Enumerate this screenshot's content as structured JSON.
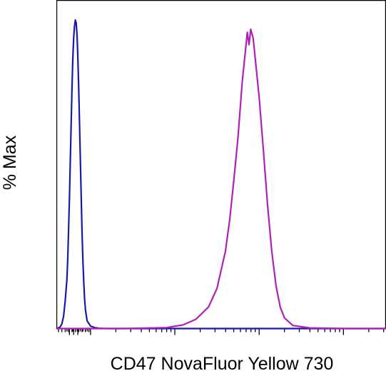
{
  "chart_data": {
    "type": "line",
    "title": "",
    "xlabel": "CD47 NovaFluor Yellow 730",
    "ylabel": "% Max",
    "x_scale": "logicle",
    "x_tick_labels_shown": false,
    "y_tick_labels_shown": false,
    "ylim": [
      0,
      100
    ],
    "grid": false,
    "legend": "none",
    "series": [
      {
        "color": "#1a1aa6",
        "x": [
          0.6,
          0.64,
          0.66,
          0.68,
          0.7,
          0.72,
          0.73,
          0.74,
          0.75,
          0.76,
          0.77,
          0.78,
          0.79,
          0.8,
          0.81,
          0.82,
          0.83,
          0.84,
          0.85,
          0.86,
          0.87,
          0.88,
          0.89,
          0.9,
          0.91,
          0.92,
          0.93,
          0.94,
          0.96,
          1.0,
          1.05,
          1.1,
          1.15,
          1.2,
          1.25,
          1.3,
          1.4,
          1.7,
          2.0,
          2.5,
          3.0,
          3.5,
          4.0,
          4.5
        ],
        "values": [
          0.0,
          0.5,
          1.5,
          4.0,
          9.0,
          16.0,
          23.0,
          32.0,
          42.0,
          54.0,
          66.0,
          78.0,
          87.0,
          94.0,
          98.0,
          100.0,
          99.0,
          95.0,
          88.0,
          78.0,
          66.0,
          54.0,
          42.0,
          31.0,
          22.0,
          15.0,
          9.5,
          6.0,
          2.5,
          0.8,
          0.3,
          0.1,
          0.05,
          0.0,
          0.0,
          0.0,
          0.0,
          0.0,
          0.0,
          0.0,
          0.0,
          0.0,
          0.0,
          0.0
        ]
      },
      {
        "color": "#b01fb8",
        "x": [
          0.6,
          1.0,
          1.4,
          1.9,
          2.1,
          2.25,
          2.4,
          2.5,
          2.6,
          2.65,
          2.7,
          2.75,
          2.8,
          2.83,
          2.86,
          2.88,
          2.9,
          2.93,
          2.96,
          3.0,
          3.05,
          3.1,
          3.15,
          3.2,
          3.25,
          3.3,
          3.4,
          3.6,
          4.0,
          4.5
        ],
        "values": [
          0.0,
          0.0,
          0.0,
          0.3,
          1.2,
          3.0,
          7.0,
          13.0,
          25.0,
          35.0,
          48.0,
          62.0,
          80.0,
          88.0,
          96.0,
          92.0,
          97.0,
          94.0,
          86.0,
          75.0,
          58.0,
          40.0,
          25.0,
          14.0,
          7.0,
          3.5,
          1.0,
          0.2,
          0.0,
          0.0
        ]
      }
    ]
  }
}
